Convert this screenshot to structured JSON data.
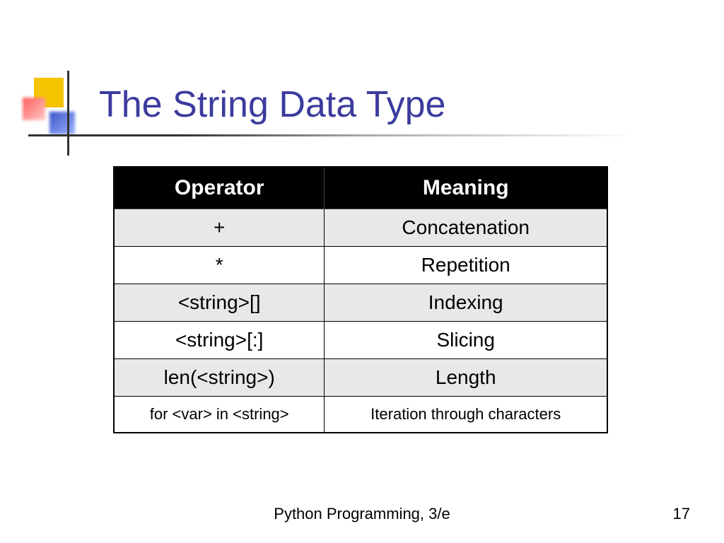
{
  "slide": {
    "title": "The String Data Type",
    "footer": "Python Programming, 3/e",
    "page_number": "17"
  },
  "table": {
    "columns": [
      "Operator",
      "Meaning"
    ],
    "rows": [
      {
        "operator": "+",
        "meaning": "Concatenation",
        "row_class": "alt"
      },
      {
        "operator": "*",
        "meaning": "Repetition",
        "row_class": "plain"
      },
      {
        "operator": "<string>[]",
        "meaning": "Indexing",
        "row_class": "alt"
      },
      {
        "operator": "<string>[:]",
        "meaning": "Slicing",
        "row_class": "plain"
      },
      {
        "operator": "len(<string>)",
        "meaning": "Length",
        "row_class": "alt"
      },
      {
        "operator": "for <var> in <string>",
        "meaning": "Iteration through characters",
        "row_class": "plain small"
      }
    ],
    "header_bg": "#000000",
    "header_fg": "#ffffff",
    "alt_row_bg": "#e8e8e8",
    "plain_row_bg": "#ffffff",
    "border_color": "#000000",
    "header_fontsize": 30,
    "cell_fontsize": 28,
    "small_cell_fontsize": 22
  },
  "decoration": {
    "yellow": "#f5c400",
    "red": "#ff5a5a",
    "blue": "#3a56c9",
    "title_color": "#3b3b9e"
  }
}
